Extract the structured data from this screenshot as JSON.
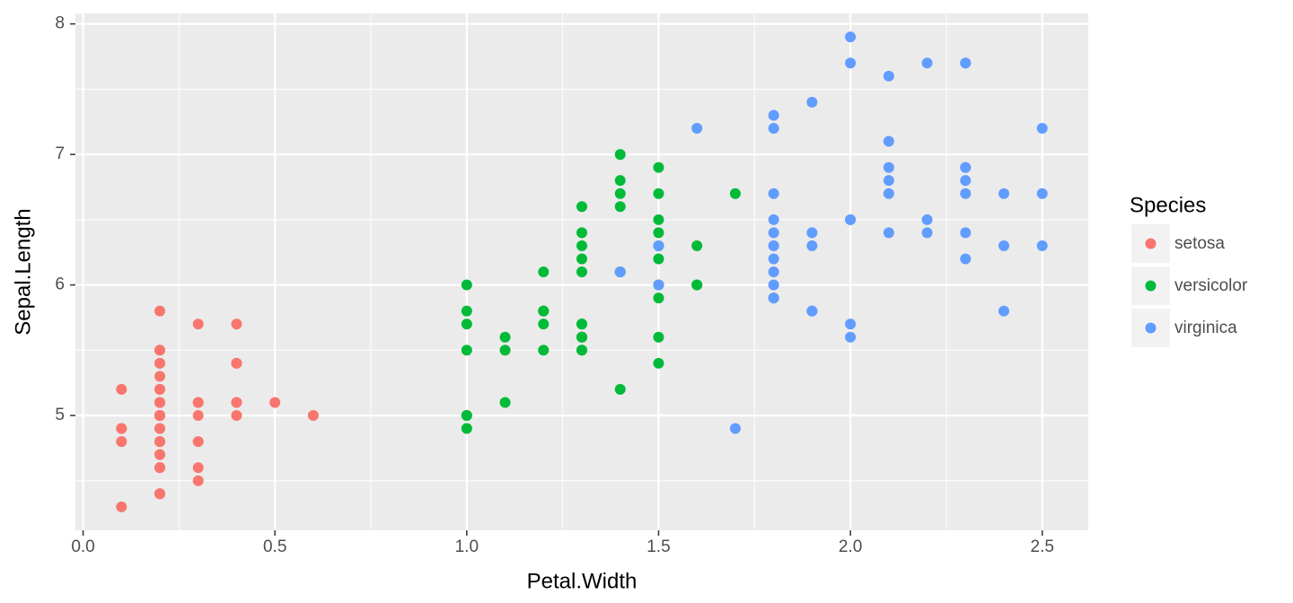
{
  "chart_data": {
    "type": "scatter",
    "x_label": "Petal.Width",
    "y_label": "Sepal.Length",
    "legend_title": "Species",
    "legend": "right",
    "grid": true,
    "xlim": [
      -0.02,
      2.62
    ],
    "xticks": [
      {
        "value": 0,
        "label": "0.0"
      },
      0.5,
      {
        "value": 1,
        "label": "1.0"
      },
      1.5,
      {
        "value": 2,
        "label": "2.0"
      },
      2.5
    ],
    "xminor": [
      0.25,
      0.75,
      1.25,
      1.75,
      2.25
    ],
    "ylim": [
      4.12,
      8.08
    ],
    "yticks": [
      5,
      6,
      7,
      8
    ],
    "yminor": [
      4.5,
      5.5,
      6.5,
      7.5
    ],
    "series": [
      {
        "name": "setosa",
        "color": "#F8766D",
        "x": [
          0.2,
          0.2,
          0.2,
          0.2,
          0.2,
          0.4,
          0.3,
          0.2,
          0.2,
          0.1,
          0.2,
          0.2,
          0.1,
          0.1,
          0.2,
          0.4,
          0.4,
          0.3,
          0.3,
          0.3,
          0.2,
          0.4,
          0.2,
          0.5,
          0.2,
          0.2,
          0.4,
          0.2,
          0.2,
          0.2,
          0.2,
          0.4,
          0.1,
          0.2,
          0.2,
          0.2,
          0.2,
          0.1,
          0.2,
          0.2,
          0.3,
          0.3,
          0.2,
          0.6,
          0.4,
          0.3,
          0.2,
          0.2,
          0.2,
          0.2
        ],
        "values": [
          5.1,
          4.9,
          4.7,
          4.6,
          5.0,
          5.4,
          4.6,
          5.0,
          4.4,
          4.9,
          5.4,
          4.8,
          4.8,
          4.3,
          5.8,
          5.7,
          5.4,
          5.1,
          5.7,
          5.1,
          5.4,
          5.1,
          4.6,
          5.1,
          4.8,
          5.0,
          5.0,
          5.2,
          5.2,
          4.7,
          4.8,
          5.4,
          5.2,
          5.5,
          4.9,
          5.0,
          5.5,
          4.9,
          4.4,
          5.1,
          5.0,
          4.5,
          4.4,
          5.0,
          5.1,
          4.8,
          5.1,
          4.6,
          5.3,
          5.0
        ]
      },
      {
        "name": "versicolor",
        "color": "#00BA38",
        "x": [
          1.4,
          1.5,
          1.5,
          1.3,
          1.5,
          1.3,
          1.6,
          1.0,
          1.3,
          1.4,
          1.0,
          1.5,
          1.0,
          1.4,
          1.3,
          1.4,
          1.5,
          1.0,
          1.5,
          1.1,
          1.8,
          1.3,
          1.5,
          1.2,
          1.3,
          1.4,
          1.4,
          1.7,
          1.5,
          1.0,
          1.1,
          1.0,
          1.2,
          1.6,
          1.5,
          1.6,
          1.5,
          1.3,
          1.3,
          1.3,
          1.2,
          1.4,
          1.2,
          1.0,
          1.3,
          1.2,
          1.3,
          1.3,
          1.1,
          1.3
        ],
        "values": [
          7.0,
          6.4,
          6.9,
          5.5,
          6.5,
          5.7,
          6.3,
          4.9,
          6.6,
          5.2,
          5.0,
          5.9,
          6.0,
          6.1,
          5.6,
          6.7,
          5.6,
          5.8,
          6.2,
          5.6,
          5.9,
          6.1,
          6.3,
          6.1,
          6.4,
          6.6,
          6.8,
          6.7,
          6.0,
          5.7,
          5.5,
          5.5,
          5.8,
          6.0,
          5.4,
          6.0,
          6.7,
          6.3,
          5.6,
          5.5,
          5.5,
          6.1,
          5.8,
          5.0,
          5.6,
          5.7,
          5.7,
          6.2,
          5.1,
          5.7
        ]
      },
      {
        "name": "virginica",
        "color": "#619CFF",
        "x": [
          2.5,
          1.9,
          2.1,
          1.8,
          2.2,
          2.1,
          1.7,
          1.8,
          1.8,
          2.5,
          2.0,
          1.9,
          2.1,
          2.0,
          2.4,
          2.3,
          1.8,
          2.2,
          2.3,
          1.5,
          2.3,
          2.0,
          2.0,
          1.8,
          2.1,
          1.8,
          1.8,
          1.8,
          2.1,
          1.6,
          1.9,
          2.0,
          2.2,
          1.5,
          1.4,
          2.3,
          2.4,
          1.8,
          1.8,
          2.1,
          2.4,
          2.3,
          1.9,
          2.3,
          2.5,
          2.3,
          1.9,
          2.0,
          2.3,
          1.8
        ],
        "values": [
          6.3,
          5.8,
          7.1,
          6.3,
          6.5,
          7.6,
          4.9,
          7.3,
          6.7,
          7.2,
          6.5,
          6.4,
          6.8,
          5.7,
          5.8,
          6.4,
          6.5,
          7.7,
          7.7,
          6.0,
          6.9,
          5.6,
          7.7,
          6.3,
          6.7,
          7.2,
          6.2,
          6.1,
          6.4,
          7.2,
          7.4,
          7.9,
          6.4,
          6.3,
          6.1,
          7.7,
          6.3,
          6.4,
          6.0,
          6.9,
          6.7,
          6.9,
          5.8,
          6.8,
          6.7,
          6.7,
          6.3,
          6.5,
          6.2,
          5.9
        ]
      }
    ]
  }
}
